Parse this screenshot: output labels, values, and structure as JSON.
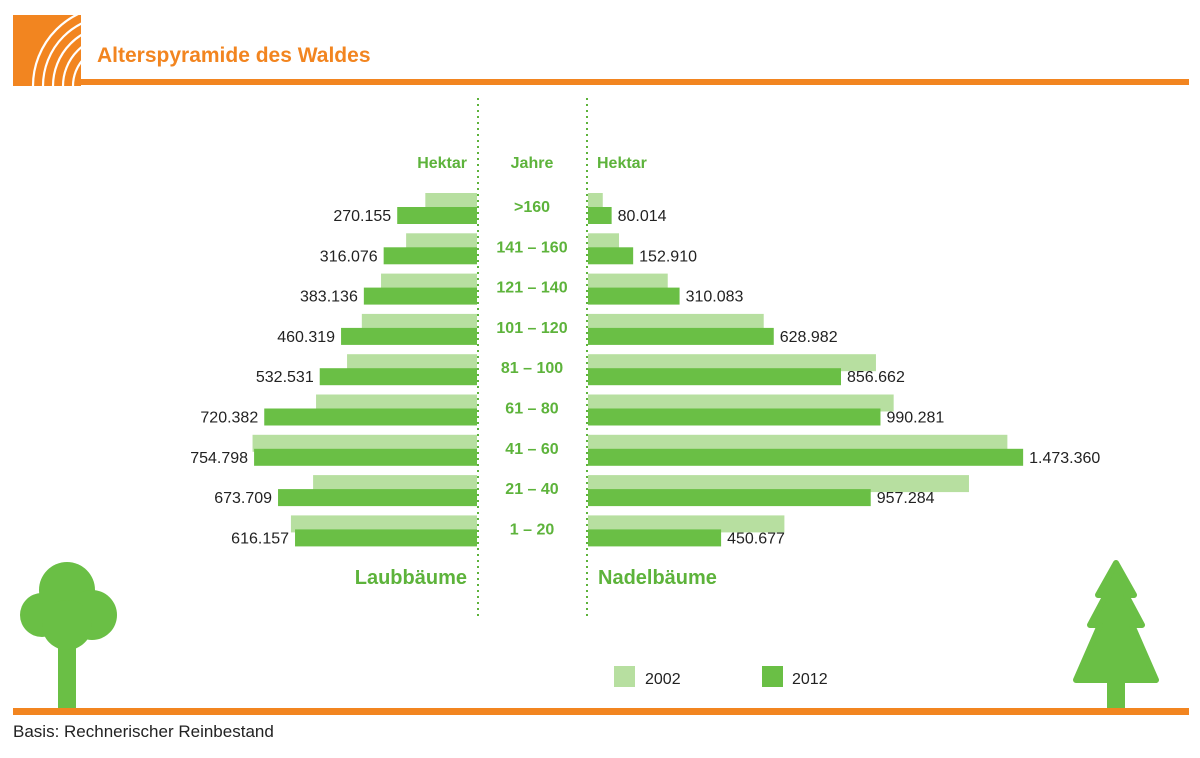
{
  "title": "Alterspyramide des Waldes",
  "footnote": "Basis: Rechnerischer Reinbestand",
  "colors": {
    "accent": "#f28520",
    "green_dark": "#6abf45",
    "green_light": "#b7dfa0",
    "label_green": "#5db33b"
  },
  "chart_data": {
    "type": "bar",
    "orientation": "horizontal-population-pyramid",
    "title": "Alterspyramide des Waldes",
    "center_header": "Jahre",
    "left_header": "Hektar",
    "right_header": "Hektar",
    "left_group_label": "Laubbäume",
    "right_group_label": "Nadelbäume",
    "categories": [
      ">160",
      "141 – 160",
      "121 – 140",
      "101 – 120",
      "81 – 100",
      "61 – 80",
      "41 – 60",
      "21 – 40",
      "1 – 20"
    ],
    "legend": [
      "2002",
      "2012"
    ],
    "legend_position": "bottom-right",
    "value_max": 1500000,
    "left": {
      "name": "Laubbäume",
      "series": [
        {
          "name": "2002",
          "values": [
            175000,
            240000,
            325000,
            390000,
            440000,
            545000,
            760000,
            555000,
            630000
          ],
          "labels": [
            "",
            "",
            "",
            "",
            "",
            "",
            "",
            "",
            ""
          ]
        },
        {
          "name": "2012",
          "values": [
            270155,
            316076,
            383136,
            460319,
            532531,
            720382,
            754798,
            673709,
            616157
          ],
          "labels": [
            "270.155",
            "316.076",
            "383.136",
            "460.319",
            "532.531",
            "720.382",
            "754.798",
            "673.709",
            "616.157"
          ]
        }
      ]
    },
    "right": {
      "name": "Nadelbäume",
      "series": [
        {
          "name": "2002",
          "values": [
            50000,
            105000,
            270000,
            595000,
            975000,
            1035000,
            1420000,
            1290000,
            665000
          ],
          "labels": [
            "",
            "",
            "",
            "",
            "",
            "",
            "",
            "",
            ""
          ]
        },
        {
          "name": "2012",
          "values": [
            80014,
            152910,
            310083,
            628982,
            856662,
            990281,
            1473360,
            957284,
            450677
          ],
          "labels": [
            "80.014",
            "152.910",
            "310.083",
            "628.982",
            "856.662",
            "990.281",
            "1.473.360",
            "957.284",
            "450.677"
          ]
        }
      ]
    }
  }
}
